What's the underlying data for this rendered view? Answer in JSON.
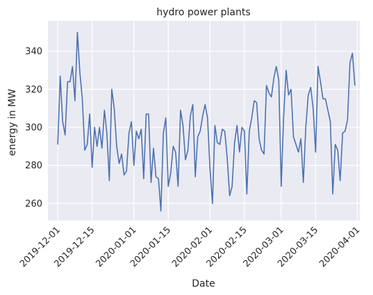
{
  "chart_data": {
    "type": "line",
    "title": "hydro power plants",
    "xlabel": "Date",
    "ylabel": "energy in MW",
    "grid": true,
    "legend": "none",
    "style": {
      "background": "#eaeaf2",
      "grid": "#ffffff",
      "line": "#4c72b0"
    },
    "xlim": [
      "2019-11-27",
      "2020-04-02"
    ],
    "ylim": [
      251,
      356
    ],
    "xticks": [
      "2019-12-01",
      "2019-12-15",
      "2020-01-01",
      "2020-01-15",
      "2020-02-01",
      "2020-02-15",
      "2020-03-01",
      "2020-03-15",
      "2020-04-01"
    ],
    "yticks": [
      260,
      280,
      300,
      320,
      340
    ],
    "series": [
      {
        "start_date": "2019-12-01",
        "step_days": 1,
        "values": [
          291,
          327,
          303,
          296,
          324,
          324,
          332,
          314,
          350,
          329,
          315,
          288,
          291,
          307,
          279,
          300,
          290,
          300,
          289,
          309,
          297,
          272,
          320,
          310,
          290,
          281,
          286,
          275,
          277,
          297,
          303,
          280,
          298,
          294,
          299,
          273,
          307,
          307,
          271,
          289,
          274,
          273,
          256,
          297,
          305,
          269,
          276,
          290,
          287,
          269,
          309,
          301,
          283,
          288,
          306,
          312,
          274,
          295,
          298,
          306,
          312,
          305,
          278,
          260,
          301,
          292,
          291,
          299,
          298,
          284,
          264,
          269,
          292,
          301,
          287,
          300,
          298,
          265,
          298,
          305,
          314,
          313,
          294,
          288,
          286,
          322,
          318,
          316,
          326,
          332,
          325,
          269,
          306,
          330,
          317,
          320,
          295,
          291,
          287,
          294,
          271,
          300,
          317,
          321,
          310,
          287,
          332,
          324,
          315,
          315,
          309,
          303,
          265,
          291,
          288,
          272,
          297,
          298,
          304,
          334,
          339,
          322
        ]
      }
    ]
  }
}
